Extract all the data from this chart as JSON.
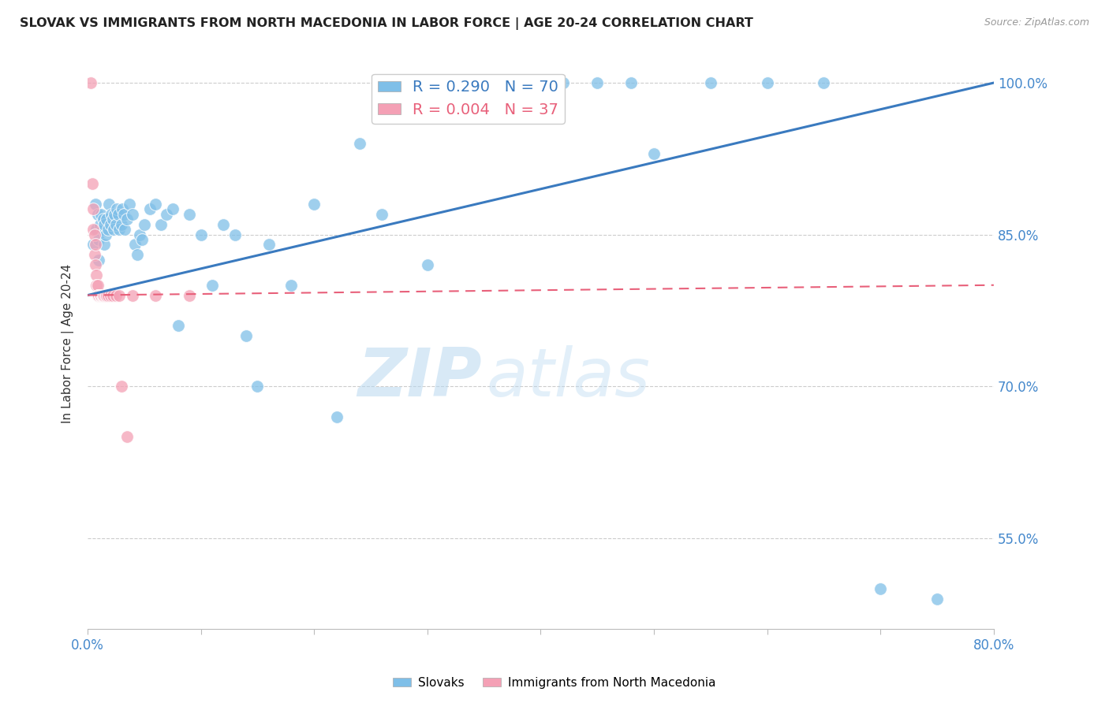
{
  "title": "SLOVAK VS IMMIGRANTS FROM NORTH MACEDONIA IN LABOR FORCE | AGE 20-24 CORRELATION CHART",
  "source": "Source: ZipAtlas.com",
  "ylabel": "In Labor Force | Age 20-24",
  "xlim": [
    0.0,
    0.8
  ],
  "ylim": [
    0.46,
    1.025
  ],
  "xticks": [
    0.0,
    0.1,
    0.2,
    0.3,
    0.4,
    0.5,
    0.6,
    0.7,
    0.8
  ],
  "yticks_right": [
    0.55,
    0.7,
    0.85,
    1.0
  ],
  "ytick_labels_right": [
    "55.0%",
    "70.0%",
    "85.0%",
    "100.0%"
  ],
  "blue_R": 0.29,
  "blue_N": 70,
  "pink_R": 0.004,
  "pink_N": 37,
  "blue_color": "#7fbfe8",
  "pink_color": "#f4a0b5",
  "blue_line_color": "#3a7abf",
  "pink_line_color": "#e8607a",
  "legend_label_blue": "Slovaks",
  "legend_label_pink": "Immigrants from North Macedonia",
  "watermark_zip": "ZIP",
  "watermark_atlas": "atlas",
  "title_color": "#222222",
  "axis_label_color": "#4488cc",
  "blue_scatter_x": [
    0.005,
    0.007,
    0.008,
    0.009,
    0.01,
    0.01,
    0.011,
    0.012,
    0.013,
    0.014,
    0.015,
    0.015,
    0.016,
    0.017,
    0.018,
    0.019,
    0.02,
    0.021,
    0.022,
    0.023,
    0.024,
    0.025,
    0.026,
    0.027,
    0.028,
    0.03,
    0.031,
    0.032,
    0.033,
    0.035,
    0.037,
    0.04,
    0.042,
    0.044,
    0.046,
    0.048,
    0.05,
    0.055,
    0.06,
    0.065,
    0.07,
    0.075,
    0.08,
    0.09,
    0.1,
    0.11,
    0.12,
    0.13,
    0.14,
    0.15,
    0.16,
    0.18,
    0.2,
    0.22,
    0.24,
    0.26,
    0.3,
    0.32,
    0.35,
    0.38,
    0.4,
    0.42,
    0.45,
    0.48,
    0.5,
    0.55,
    0.6,
    0.65,
    0.7,
    0.75
  ],
  "blue_scatter_y": [
    0.84,
    0.88,
    0.855,
    0.87,
    0.825,
    0.845,
    0.86,
    0.87,
    0.855,
    0.865,
    0.84,
    0.86,
    0.85,
    0.865,
    0.855,
    0.88,
    0.86,
    0.87,
    0.865,
    0.855,
    0.87,
    0.86,
    0.875,
    0.87,
    0.855,
    0.86,
    0.875,
    0.87,
    0.855,
    0.865,
    0.88,
    0.87,
    0.84,
    0.83,
    0.85,
    0.845,
    0.86,
    0.875,
    0.88,
    0.86,
    0.87,
    0.875,
    0.76,
    0.87,
    0.85,
    0.8,
    0.86,
    0.85,
    0.75,
    0.7,
    0.84,
    0.8,
    0.88,
    0.67,
    0.94,
    0.87,
    0.82,
    1.0,
    1.0,
    1.0,
    1.0,
    1.0,
    1.0,
    1.0,
    0.93,
    1.0,
    1.0,
    1.0,
    0.5,
    0.49
  ],
  "pink_scatter_x": [
    0.003,
    0.004,
    0.005,
    0.005,
    0.006,
    0.006,
    0.007,
    0.007,
    0.008,
    0.008,
    0.009,
    0.009,
    0.01,
    0.01,
    0.01,
    0.01,
    0.011,
    0.011,
    0.012,
    0.012,
    0.013,
    0.013,
    0.014,
    0.014,
    0.015,
    0.016,
    0.017,
    0.018,
    0.02,
    0.022,
    0.025,
    0.028,
    0.03,
    0.035,
    0.04,
    0.06,
    0.09
  ],
  "pink_scatter_y": [
    1.0,
    0.9,
    0.875,
    0.855,
    0.85,
    0.83,
    0.84,
    0.82,
    0.81,
    0.8,
    0.8,
    0.79,
    0.79,
    0.79,
    0.79,
    0.79,
    0.79,
    0.79,
    0.79,
    0.79,
    0.79,
    0.79,
    0.79,
    0.79,
    0.79,
    0.79,
    0.79,
    0.79,
    0.79,
    0.79,
    0.79,
    0.79,
    0.7,
    0.65,
    0.79,
    0.79,
    0.79
  ],
  "blue_trendline_x": [
    0.0,
    0.8
  ],
  "blue_trendline_y": [
    0.79,
    1.0
  ],
  "pink_trendline_x": [
    0.0,
    0.8
  ],
  "pink_trendline_y": [
    0.79,
    0.8
  ]
}
